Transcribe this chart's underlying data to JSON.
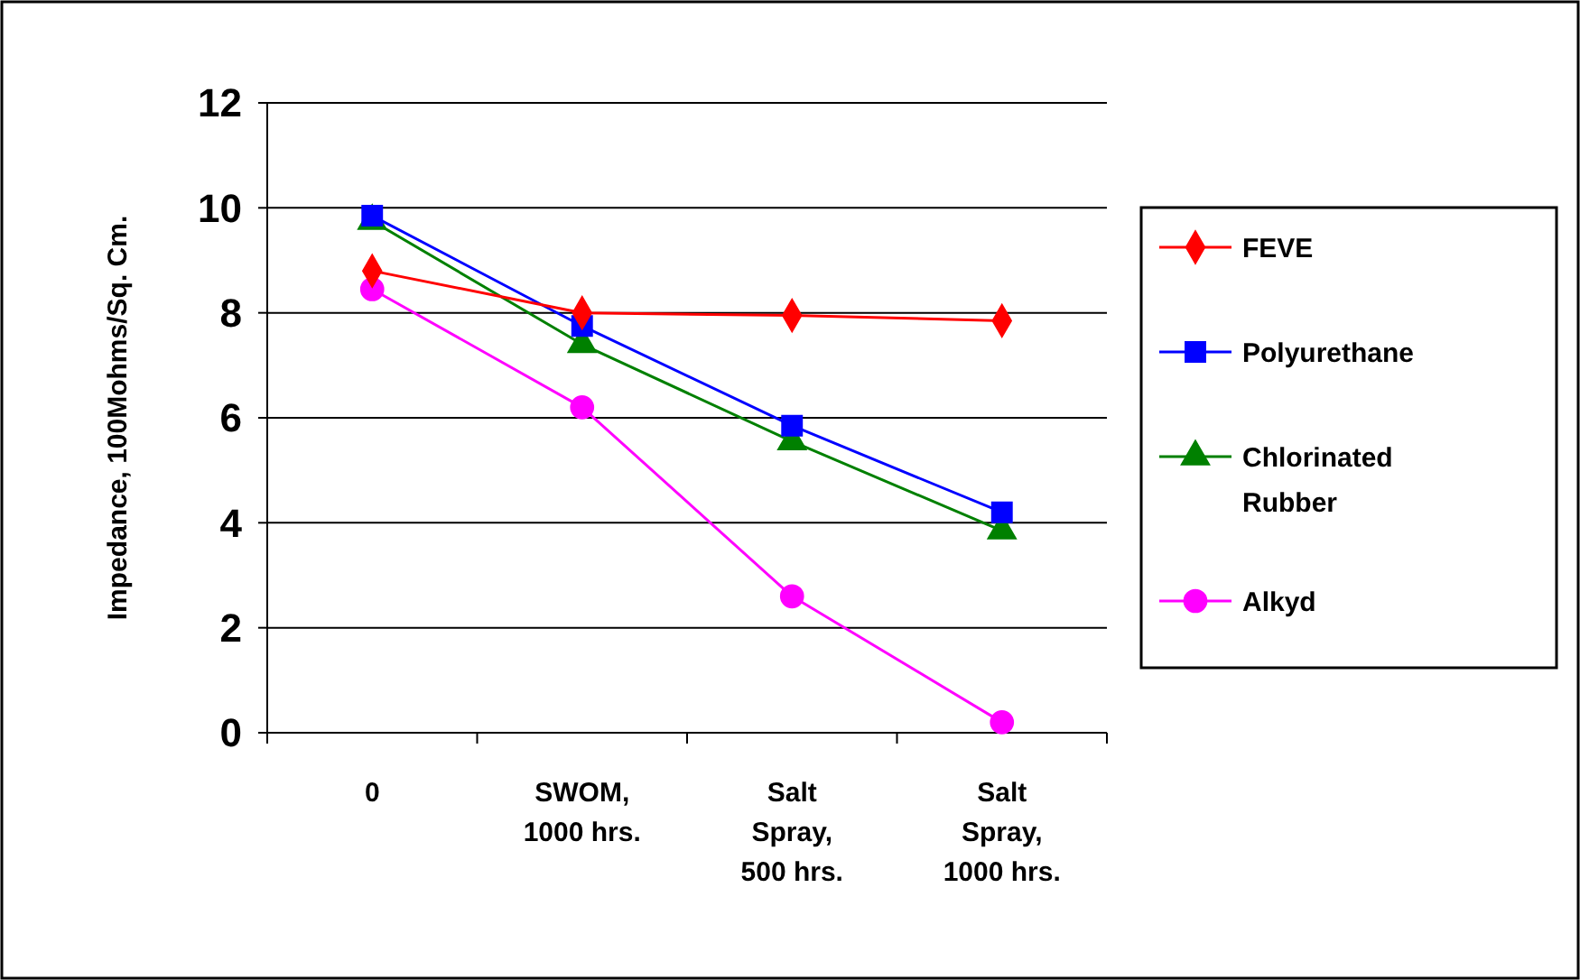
{
  "chart_data": {
    "type": "line",
    "ylabel": "Impedance, 100Mohms/Sq. Cm.",
    "categories": [
      "0",
      "SWOM, 1000 hrs.",
      "Salt Spray, 500 hrs.",
      "Salt Spray, 1000 hrs."
    ],
    "ylim": [
      0,
      12
    ],
    "yticks": [
      0,
      2,
      4,
      6,
      8,
      10,
      12
    ],
    "grid": "y",
    "legend": "right",
    "series": [
      {
        "name": "FEVE",
        "color": "#ff0000",
        "marker": "diamond",
        "values": [
          8.8,
          8.0,
          7.95,
          7.85
        ]
      },
      {
        "name": "Polyurethane",
        "color": "#0000ff",
        "marker": "square",
        "values": [
          9.85,
          7.75,
          5.85,
          4.2
        ]
      },
      {
        "name": "Chlorinated Rubber",
        "color": "#008000",
        "marker": "triangle",
        "values": [
          9.75,
          7.4,
          5.55,
          3.85
        ]
      },
      {
        "name": "Alkyd",
        "color": "#ff00ff",
        "marker": "circle",
        "values": [
          8.45,
          6.2,
          2.6,
          0.2
        ]
      }
    ]
  }
}
